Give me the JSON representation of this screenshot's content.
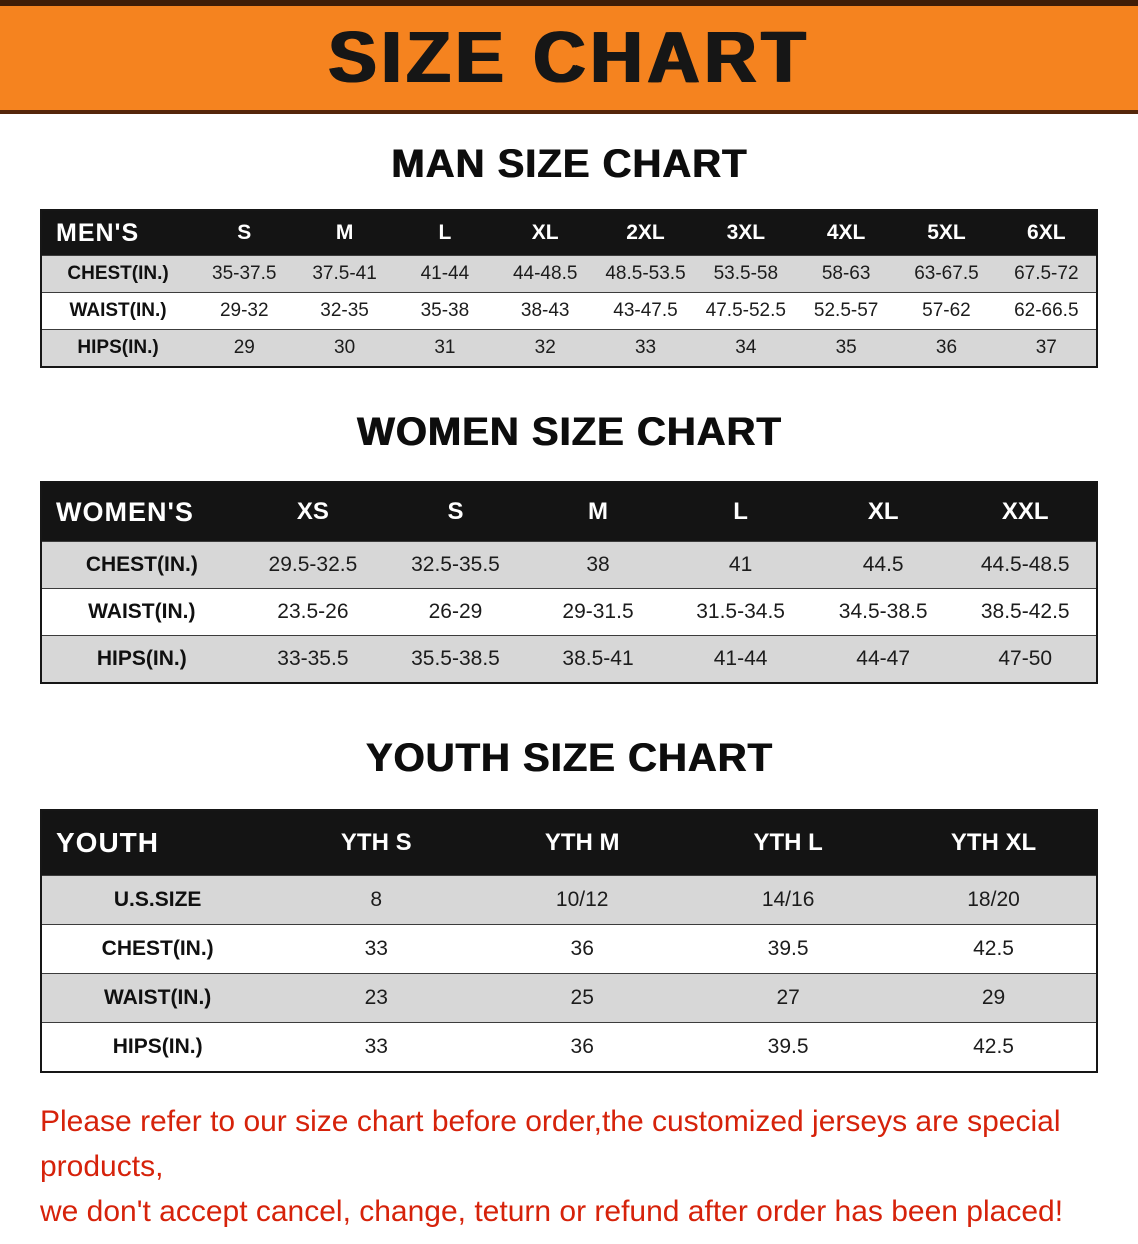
{
  "banner": {
    "title": "SIZE CHART"
  },
  "chart_data": [
    {
      "type": "table",
      "title": "MAN SIZE CHART",
      "columns": [
        "MEN'S",
        "S",
        "M",
        "L",
        "XL",
        "2XL",
        "3XL",
        "4XL",
        "5XL",
        "6XL"
      ],
      "rows": [
        [
          "CHEST(IN.)",
          "35-37.5",
          "37.5-41",
          "41-44",
          "44-48.5",
          "48.5-53.5",
          "53.5-58",
          "58-63",
          "63-67.5",
          "67.5-72"
        ],
        [
          "WAIST(IN.)",
          "29-32",
          "32-35",
          "35-38",
          "38-43",
          "43-47.5",
          "47.5-52.5",
          "52.5-57",
          "57-62",
          "62-66.5"
        ],
        [
          "HIPS(IN.)",
          "29",
          "30",
          "31",
          "32",
          "33",
          "34",
          "35",
          "36",
          "37"
        ]
      ]
    },
    {
      "type": "table",
      "title": "WOMEN SIZE CHART",
      "columns": [
        "WOMEN'S",
        "XS",
        "S",
        "M",
        "L",
        "XL",
        "XXL"
      ],
      "rows": [
        [
          "CHEST(IN.)",
          "29.5-32.5",
          "32.5-35.5",
          "38",
          "41",
          "44.5",
          "44.5-48.5"
        ],
        [
          "WAIST(IN.)",
          "23.5-26",
          "26-29",
          "29-31.5",
          "31.5-34.5",
          "34.5-38.5",
          "38.5-42.5"
        ],
        [
          "HIPS(IN.)",
          "33-35.5",
          "35.5-38.5",
          "38.5-41",
          "41-44",
          "44-47",
          "47-50"
        ]
      ]
    },
    {
      "type": "table",
      "title": "YOUTH SIZE CHART",
      "columns": [
        "YOUTH",
        "YTH S",
        "YTH M",
        "YTH L",
        "YTH XL"
      ],
      "rows": [
        [
          "U.S.SIZE",
          "8",
          "10/12",
          "14/16",
          "18/20"
        ],
        [
          "CHEST(IN.)",
          "33",
          "36",
          "39.5",
          "42.5"
        ],
        [
          "WAIST(IN.)",
          "23",
          "25",
          "27",
          "29"
        ],
        [
          "HIPS(IN.)",
          "33",
          "36",
          "39.5",
          "42.5"
        ]
      ]
    }
  ],
  "disclaimer": {
    "lines": [
      "Please refer to our size chart before order,the customized jerseys are special products,",
      "we don't accept cancel, change, teturn or refund after order has been placed!"
    ]
  },
  "colors": {
    "banner_bg": "#f5831f",
    "banner_text": "#161616",
    "table_header_bg": "#141414",
    "table_header_text": "#ffffff",
    "row_shade": "#d7d7d7",
    "disclaimer_text": "#d6220a"
  }
}
